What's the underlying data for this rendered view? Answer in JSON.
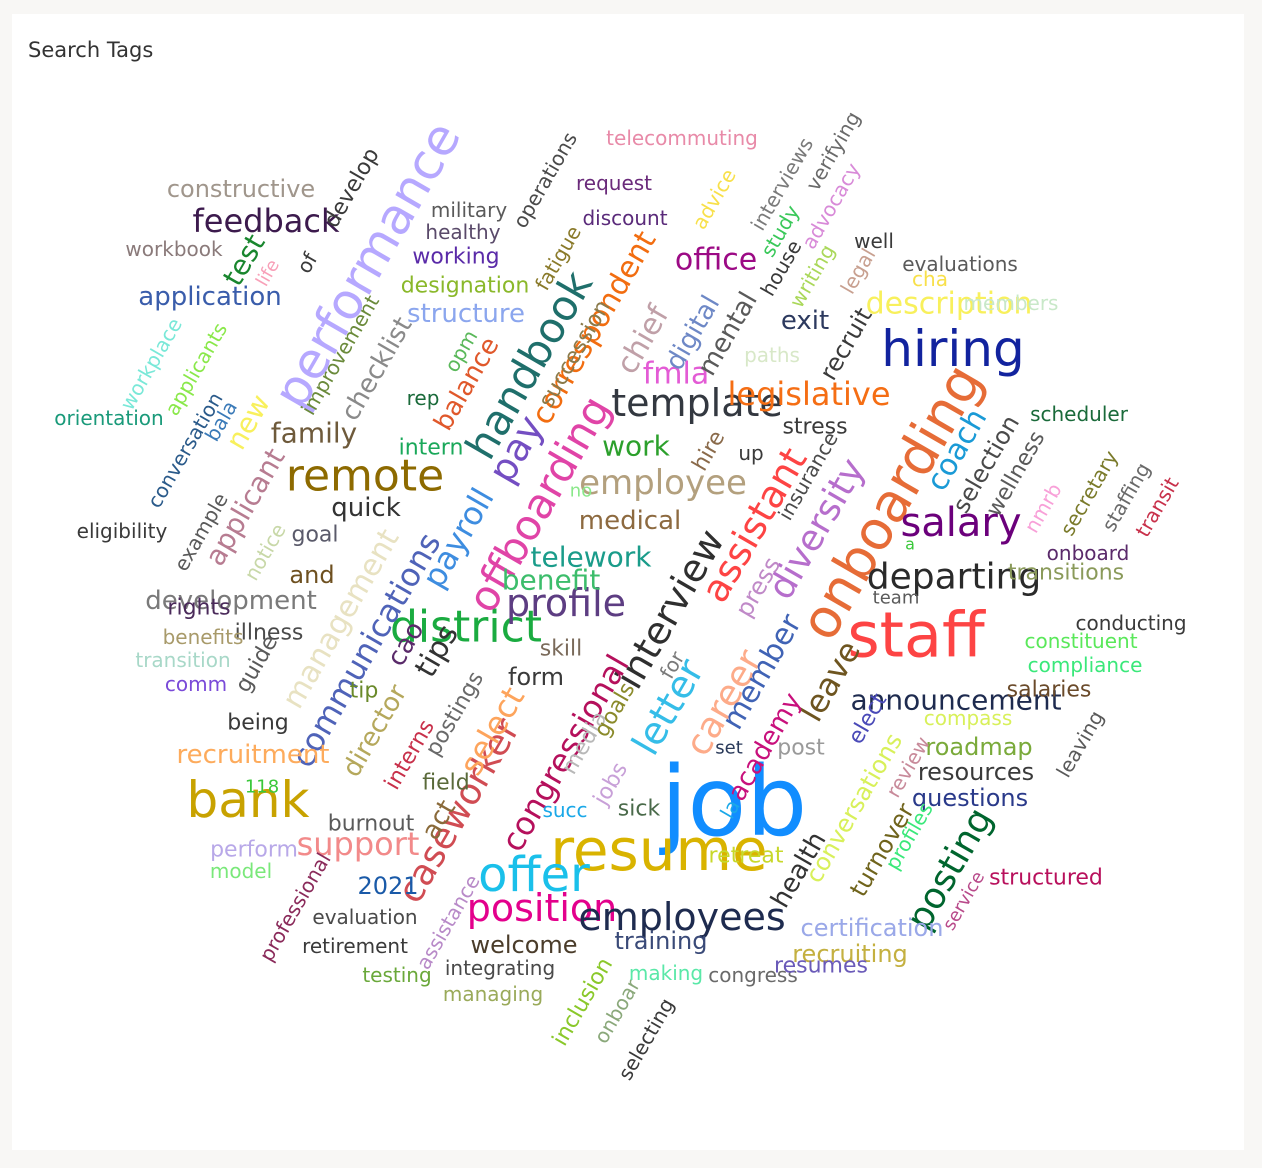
{
  "visual": {
    "title": "Search Tags"
  },
  "chart_data": {
    "type": "wordcloud",
    "title": "Search Tags",
    "words": [
      {
        "text": "job",
        "size": 96,
        "color": "#118dff"
      },
      {
        "text": "staff",
        "size": 62,
        "color": "#fd4444"
      },
      {
        "text": "resume",
        "size": 58,
        "color": "#d9b300"
      },
      {
        "text": "onboarding",
        "size": 54,
        "color": "#e66c37"
      },
      {
        "text": "performance",
        "size": 50,
        "color": "#b6a8ff"
      },
      {
        "text": "bank",
        "size": 50,
        "color": "#c8a200"
      },
      {
        "text": "hiring",
        "size": 50,
        "color": "#12239e"
      },
      {
        "text": "offer",
        "size": 48,
        "color": "#1ac0ea"
      },
      {
        "text": "district",
        "size": 44,
        "color": "#1aab40"
      },
      {
        "text": "remote",
        "size": 44,
        "color": "#8d6a00"
      },
      {
        "text": "handbook",
        "size": 42,
        "color": "#1f6f6b"
      },
      {
        "text": "offboarding",
        "size": 42,
        "color": "#e044a7"
      },
      {
        "text": "salary",
        "size": 40,
        "color": "#6b007b"
      },
      {
        "text": "template",
        "size": 38,
        "color": "#333840"
      },
      {
        "text": "pay",
        "size": 38,
        "color": "#744ec2"
      },
      {
        "text": "position",
        "size": 38,
        "color": "#e3008c"
      },
      {
        "text": "assistant",
        "size": 38,
        "color": "#fd4444"
      },
      {
        "text": "interview",
        "size": 38,
        "color": "#2f2f2f"
      },
      {
        "text": "letter",
        "size": 38,
        "color": "#35bde8"
      },
      {
        "text": "employees",
        "size": 38,
        "color": "#1e2b4f"
      },
      {
        "text": "profile",
        "size": 38,
        "color": "#5d3d82"
      },
      {
        "text": "diversity",
        "size": 36,
        "color": "#b66ecc"
      },
      {
        "text": "caseworker",
        "size": 36,
        "color": "#d04c53"
      },
      {
        "text": "posting",
        "size": 36,
        "color": "#00652e"
      },
      {
        "text": "departing",
        "size": 36,
        "color": "#2a2a2a"
      },
      {
        "text": "career",
        "size": 36,
        "color": "#fdab89"
      },
      {
        "text": "employee",
        "size": 34,
        "color": "#b3a07e"
      },
      {
        "text": "feedback",
        "size": 32,
        "color": "#3c1a4d"
      },
      {
        "text": "payroll",
        "size": 32,
        "color": "#3e8de0"
      },
      {
        "text": "support",
        "size": 32,
        "color": "#f28a8a"
      },
      {
        "text": "legislative",
        "size": 32,
        "color": "#f56e14"
      },
      {
        "text": "communications",
        "size": 32,
        "color": "#4f63b8"
      },
      {
        "text": "congressional",
        "size": 32,
        "color": "#b5105c"
      },
      {
        "text": "correspondent",
        "size": 30,
        "color": "#f26d10"
      },
      {
        "text": "select",
        "size": 32,
        "color": "#fda45c"
      },
      {
        "text": "leave",
        "size": 32,
        "color": "#6e5520"
      },
      {
        "text": "description",
        "size": 30,
        "color": "#f8f05c"
      },
      {
        "text": "office",
        "size": 30,
        "color": "#9c0a85"
      },
      {
        "text": "member",
        "size": 30,
        "color": "#4063b5"
      },
      {
        "text": "management",
        "size": 30,
        "color": "#e8e2c2"
      },
      {
        "text": "tips",
        "size": 30,
        "color": "#333333"
      },
      {
        "text": "coach",
        "size": 30,
        "color": "#1a9ad6"
      },
      {
        "text": "fmla",
        "size": 30,
        "color": "#e35bd5"
      },
      {
        "text": "chief",
        "size": 30,
        "color": "#c0a0a8"
      },
      {
        "text": "applicant",
        "size": 28,
        "color": "#b77c91"
      },
      {
        "text": "family",
        "size": 28,
        "color": "#6e5a3b"
      },
      {
        "text": "new",
        "size": 28,
        "color": "#f8f05c"
      },
      {
        "text": "test",
        "size": 28,
        "color": "#19862e"
      },
      {
        "text": "telework",
        "size": 28,
        "color": "#1a9c8a"
      },
      {
        "text": "work",
        "size": 28,
        "color": "#2ca02c"
      },
      {
        "text": "announcement",
        "size": 28,
        "color": "#1e2b4f"
      },
      {
        "text": "medical",
        "size": 26,
        "color": "#8d6a40"
      },
      {
        "text": "benefit",
        "size": 28,
        "color": "#3cbd6b"
      },
      {
        "text": "development",
        "size": 26,
        "color": "#7a7a7a"
      },
      {
        "text": "recruitment",
        "size": 26,
        "color": "#fdab5c"
      },
      {
        "text": "application",
        "size": 26,
        "color": "#3a5dab"
      },
      {
        "text": "director",
        "size": 26,
        "color": "#b5a85c"
      },
      {
        "text": "structure",
        "size": 26,
        "color": "#8ba6ee"
      },
      {
        "text": "checklist",
        "size": 26,
        "color": "#8a8a8a"
      },
      {
        "text": "balance",
        "size": 26,
        "color": "#e0582b"
      },
      {
        "text": "constructive",
        "size": 24,
        "color": "#a0968c"
      },
      {
        "text": "digital",
        "size": 26,
        "color": "#6e88c6"
      },
      {
        "text": "mental",
        "size": 26,
        "color": "#5a5a5a"
      },
      {
        "text": "quick",
        "size": 26,
        "color": "#333333"
      },
      {
        "text": "conversations",
        "size": 24,
        "color": "#d8f05a"
      },
      {
        "text": "certification",
        "size": 24,
        "color": "#9aa8e8"
      },
      {
        "text": "welcome",
        "size": 24,
        "color": "#4a3c2a"
      },
      {
        "text": "exit",
        "size": 26,
        "color": "#2d3a5f"
      },
      {
        "text": "academy",
        "size": 26,
        "color": "#c8107c"
      },
      {
        "text": "training",
        "size": 24,
        "color": "#3a4a78"
      },
      {
        "text": "recruiting",
        "size": 24,
        "color": "#c4b040"
      },
      {
        "text": "health",
        "size": 26,
        "color": "#333333"
      },
      {
        "text": "turnover",
        "size": 24,
        "color": "#70641c"
      },
      {
        "text": "resources",
        "size": 24,
        "color": "#3a3a3a"
      },
      {
        "text": "questions",
        "size": 24,
        "color": "#2a3a8a"
      },
      {
        "text": "roadmap",
        "size": 24,
        "color": "#7aaa3a"
      },
      {
        "text": "selection",
        "size": 24,
        "color": "#4a4a4a"
      },
      {
        "text": "wellness",
        "size": 22,
        "color": "#5a5a5a"
      },
      {
        "text": "transitions",
        "size": 22,
        "color": "#8a9a5a"
      },
      {
        "text": "burnout",
        "size": 22,
        "color": "#5a5a5a"
      },
      {
        "text": "2021",
        "size": 24,
        "color": "#1a5aa8"
      },
      {
        "text": "develop",
        "size": 22,
        "color": "#3a3a3a"
      },
      {
        "text": "recruit",
        "size": 24,
        "color": "#3a3a3a"
      },
      {
        "text": "designation",
        "size": 22,
        "color": "#8ab82a"
      },
      {
        "text": "working",
        "size": 22,
        "color": "#5a2aa8"
      },
      {
        "text": "succession",
        "size": 22,
        "color": "#8a7a4a"
      },
      {
        "text": "insurance",
        "size": 20,
        "color": "#4a4a4a"
      },
      {
        "text": "stress",
        "size": 22,
        "color": "#3a3a3a"
      },
      {
        "text": "press",
        "size": 24,
        "color": "#c08ac8"
      },
      {
        "text": "hire",
        "size": 22,
        "color": "#8a6a4a"
      },
      {
        "text": "up",
        "size": 20,
        "color": "#3a3a3a"
      },
      {
        "text": "form",
        "size": 24,
        "color": "#3a3a3a"
      },
      {
        "text": "skill",
        "size": 22,
        "color": "#7a6a5a"
      },
      {
        "text": "cao",
        "size": 26,
        "color": "#5a2a6a"
      },
      {
        "text": "goal",
        "size": 22,
        "color": "#5a5a6a"
      },
      {
        "text": "and",
        "size": 24,
        "color": "#6e5020"
      },
      {
        "text": "rights",
        "size": 22,
        "color": "#4a2a5a"
      },
      {
        "text": "illness",
        "size": 22,
        "color": "#4a4a4a"
      },
      {
        "text": "guide",
        "size": 22,
        "color": "#5a5a5a"
      },
      {
        "text": "tip",
        "size": 22,
        "color": "#6a8a2a"
      },
      {
        "text": "interns",
        "size": 22,
        "color": "#c8304a"
      },
      {
        "text": "postings",
        "size": 22,
        "color": "#6a6a6a"
      },
      {
        "text": "field",
        "size": 22,
        "color": "#5a6a3a"
      },
      {
        "text": "act",
        "size": 26,
        "color": "#8a6a3a"
      },
      {
        "text": "media",
        "size": 22,
        "color": "#b8b8b8"
      },
      {
        "text": "goals",
        "size": 22,
        "color": "#8a8a2a"
      },
      {
        "text": "jobs",
        "size": 22,
        "color": "#c8a0d8"
      },
      {
        "text": "sick",
        "size": 22,
        "color": "#4a6a4a"
      },
      {
        "text": "succ",
        "size": 20,
        "color": "#1aa8e8"
      },
      {
        "text": "retreat",
        "size": 22,
        "color": "#c8d82a"
      },
      {
        "text": "la",
        "size": 20,
        "color": "#1aa8e8"
      },
      {
        "text": "set",
        "size": 18,
        "color": "#2a3a5a"
      },
      {
        "text": "post",
        "size": 22,
        "color": "#9a9a9a"
      },
      {
        "text": "elect",
        "size": 22,
        "color": "#4a4ab8"
      },
      {
        "text": "for",
        "size": 20,
        "color": "#7a7a7a"
      },
      {
        "text": "being",
        "size": 22,
        "color": "#3a3a3a"
      },
      {
        "text": "perform",
        "size": 22,
        "color": "#b8a8e8"
      },
      {
        "text": "model",
        "size": 20,
        "color": "#7ae87a"
      },
      {
        "text": "118",
        "size": 18,
        "color": "#3ac83a"
      },
      {
        "text": "professional",
        "size": 20,
        "color": "#8a2a5a"
      },
      {
        "text": "evaluation",
        "size": 20,
        "color": "#4a4a4a"
      },
      {
        "text": "retirement",
        "size": 20,
        "color": "#3a3a3a"
      },
      {
        "text": "testing",
        "size": 20,
        "color": "#6aa83a"
      },
      {
        "text": "assistance",
        "size": 20,
        "color": "#b88ac8"
      },
      {
        "text": "integrating",
        "size": 20,
        "color": "#4a4a4a"
      },
      {
        "text": "managing",
        "size": 20,
        "color": "#9aaa5a"
      },
      {
        "text": "inclusion",
        "size": 22,
        "color": "#8ac82a"
      },
      {
        "text": "onboar",
        "size": 20,
        "color": "#8aa87a"
      },
      {
        "text": "selecting",
        "size": 20,
        "color": "#3a3a3a"
      },
      {
        "text": "making",
        "size": 20,
        "color": "#5ae8a8"
      },
      {
        "text": "congress",
        "size": 20,
        "color": "#6a6a6a"
      },
      {
        "text": "resumes",
        "size": 22,
        "color": "#6a5ab8"
      },
      {
        "text": "service",
        "size": 18,
        "color": "#b84a8a"
      },
      {
        "text": "structured",
        "size": 22,
        "color": "#b8105c"
      },
      {
        "text": "profiles",
        "size": 20,
        "color": "#3ae87a"
      },
      {
        "text": "review",
        "size": 20,
        "color": "#c88a9a"
      },
      {
        "text": "compass",
        "size": 20,
        "color": "#d8f05a"
      },
      {
        "text": "leaving",
        "size": 20,
        "color": "#5a5a5a"
      },
      {
        "text": "salaries",
        "size": 22,
        "color": "#6a4a2a"
      },
      {
        "text": "compliance",
        "size": 20,
        "color": "#3ae87a"
      },
      {
        "text": "constituent",
        "size": 20,
        "color": "#5ae85a"
      },
      {
        "text": "conducting",
        "size": 20,
        "color": "#3a3a3a"
      },
      {
        "text": "team",
        "size": 18,
        "color": "#5a5a5a"
      },
      {
        "text": "a",
        "size": 16,
        "color": "#3ac83a"
      },
      {
        "text": "onboard",
        "size": 20,
        "color": "#5a2a6a"
      },
      {
        "text": "nmrb",
        "size": 20,
        "color": "#f8a0d8"
      },
      {
        "text": "secretary",
        "size": 20,
        "color": "#7a7a2a"
      },
      {
        "text": "staffing",
        "size": 20,
        "color": "#6a6a6a"
      },
      {
        "text": "transit",
        "size": 20,
        "color": "#c8304a"
      },
      {
        "text": "scheduler",
        "size": 20,
        "color": "#1a6a3a"
      },
      {
        "text": "members",
        "size": 20,
        "color": "#c8e8c8"
      },
      {
        "text": "cha",
        "size": 20,
        "color": "#f8e04a"
      },
      {
        "text": "evaluations",
        "size": 20,
        "color": "#5a5a5a"
      },
      {
        "text": "well",
        "size": 20,
        "color": "#3a3a3a"
      },
      {
        "text": "legal",
        "size": 20,
        "color": "#c8a090"
      },
      {
        "text": "writing",
        "size": 20,
        "color": "#aad85a"
      },
      {
        "text": "advocacy",
        "size": 20,
        "color": "#d88ad8"
      },
      {
        "text": "verifying",
        "size": 20,
        "color": "#6a6a6a"
      },
      {
        "text": "interviews",
        "size": 20,
        "color": "#7a7a7a"
      },
      {
        "text": "study",
        "size": 20,
        "color": "#3ac85a"
      },
      {
        "text": "house",
        "size": 20,
        "color": "#3a3a3a"
      },
      {
        "text": "advice",
        "size": 20,
        "color": "#f8e04a"
      },
      {
        "text": "paths",
        "size": 20,
        "color": "#d8e8c8"
      },
      {
        "text": "telecommuting",
        "size": 20,
        "color": "#e88aa8"
      },
      {
        "text": "request",
        "size": 20,
        "color": "#6a2a7a"
      },
      {
        "text": "discount",
        "size": 20,
        "color": "#5a2a7a"
      },
      {
        "text": "operations",
        "size": 20,
        "color": "#4a4a4a"
      },
      {
        "text": "military",
        "size": 20,
        "color": "#5a5a5a"
      },
      {
        "text": "healthy",
        "size": 20,
        "color": "#5a4a6a"
      },
      {
        "text": "fatigue",
        "size": 20,
        "color": "#8a7a2a"
      },
      {
        "text": "workbook",
        "size": 20,
        "color": "#8a7a7a"
      },
      {
        "text": "life",
        "size": 18,
        "color": "#f8a0b8"
      },
      {
        "text": "of",
        "size": 20,
        "color": "#3a3a3a"
      },
      {
        "text": "improvement",
        "size": 20,
        "color": "#6a8a3a"
      },
      {
        "text": "opm",
        "size": 20,
        "color": "#5ab85a"
      },
      {
        "text": "rep",
        "size": 20,
        "color": "#1a6a3a"
      },
      {
        "text": "intern",
        "size": 22,
        "color": "#1aa85a"
      },
      {
        "text": "no",
        "size": 18,
        "color": "#8ae88a"
      },
      {
        "text": "workplace",
        "size": 20,
        "color": "#7ae8d8"
      },
      {
        "text": "applicants",
        "size": 20,
        "color": "#8ae84a"
      },
      {
        "text": "orientation",
        "size": 20,
        "color": "#1a9a7a"
      },
      {
        "text": "bala",
        "size": 20,
        "color": "#3a7ab8"
      },
      {
        "text": "conversation",
        "size": 20,
        "color": "#2a5a8a"
      },
      {
        "text": "eligibility",
        "size": 20,
        "color": "#3a3a3a"
      },
      {
        "text": "example",
        "size": 20,
        "color": "#5a5a5a"
      },
      {
        "text": "notice",
        "size": 20,
        "color": "#c8d8a8"
      },
      {
        "text": "benefits",
        "size": 20,
        "color": "#a89a6a"
      },
      {
        "text": "transition",
        "size": 20,
        "color": "#a8d8c8"
      },
      {
        "text": "comm",
        "size": 20,
        "color": "#7a4ad8"
      }
    ]
  }
}
